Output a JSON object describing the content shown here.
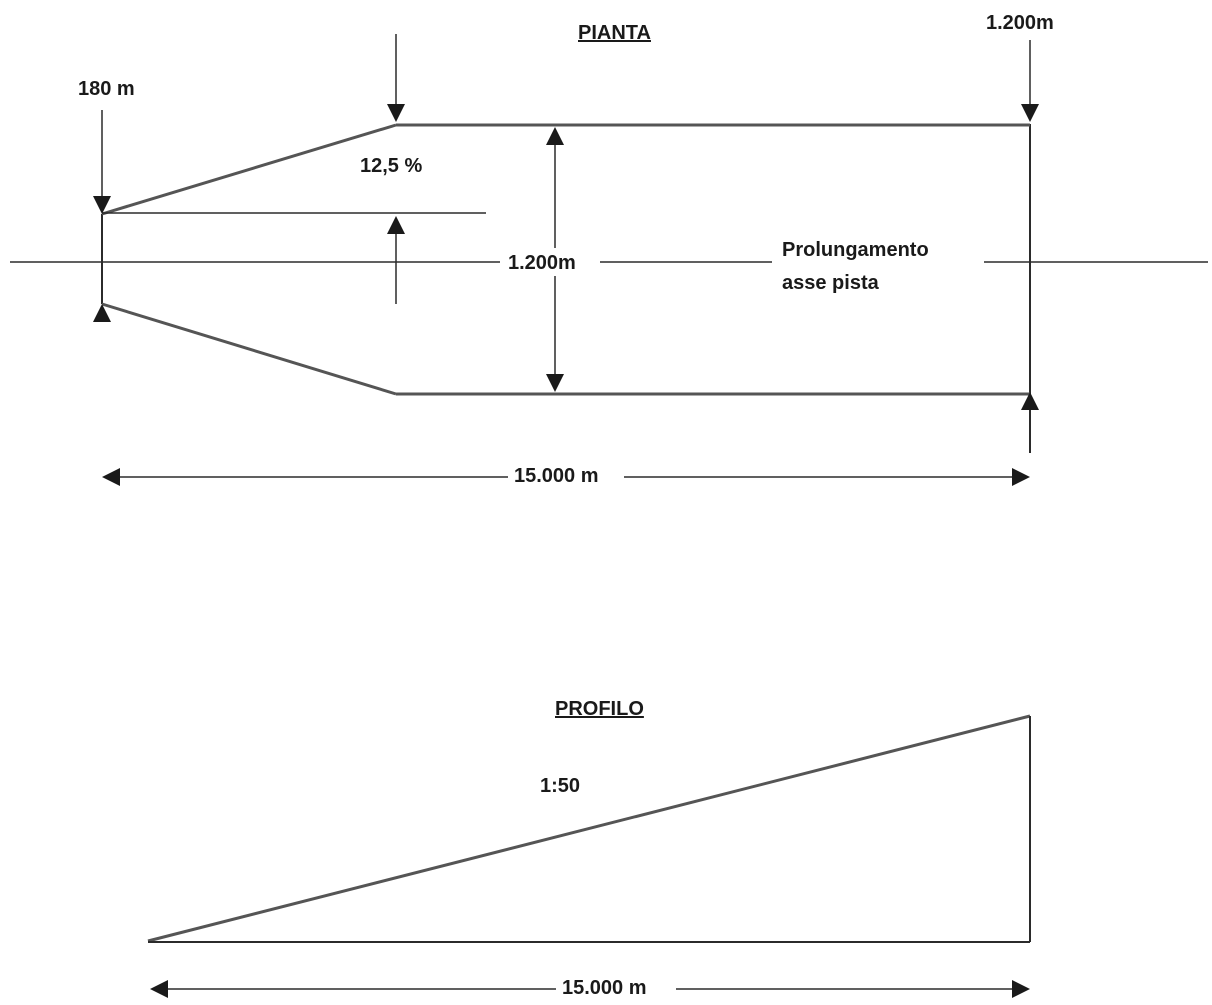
{
  "plan": {
    "title": "PIANTA",
    "inner_width_label": "180 m",
    "outer_width_label": "1.200m",
    "divergence_label": "12,5 %",
    "center_width_label": "1.200m",
    "centerline_label_line1": "Prolungamento",
    "centerline_label_line2": "asse pista",
    "length_label": "15.000 m"
  },
  "profile": {
    "title": "PROFILO",
    "slope_label": "1:50",
    "length_label": "15.000 m"
  },
  "colors": {
    "line": "#2b2b2b",
    "slope_line": "#555555",
    "text": "#1a1a1a",
    "background": "#ffffff"
  }
}
